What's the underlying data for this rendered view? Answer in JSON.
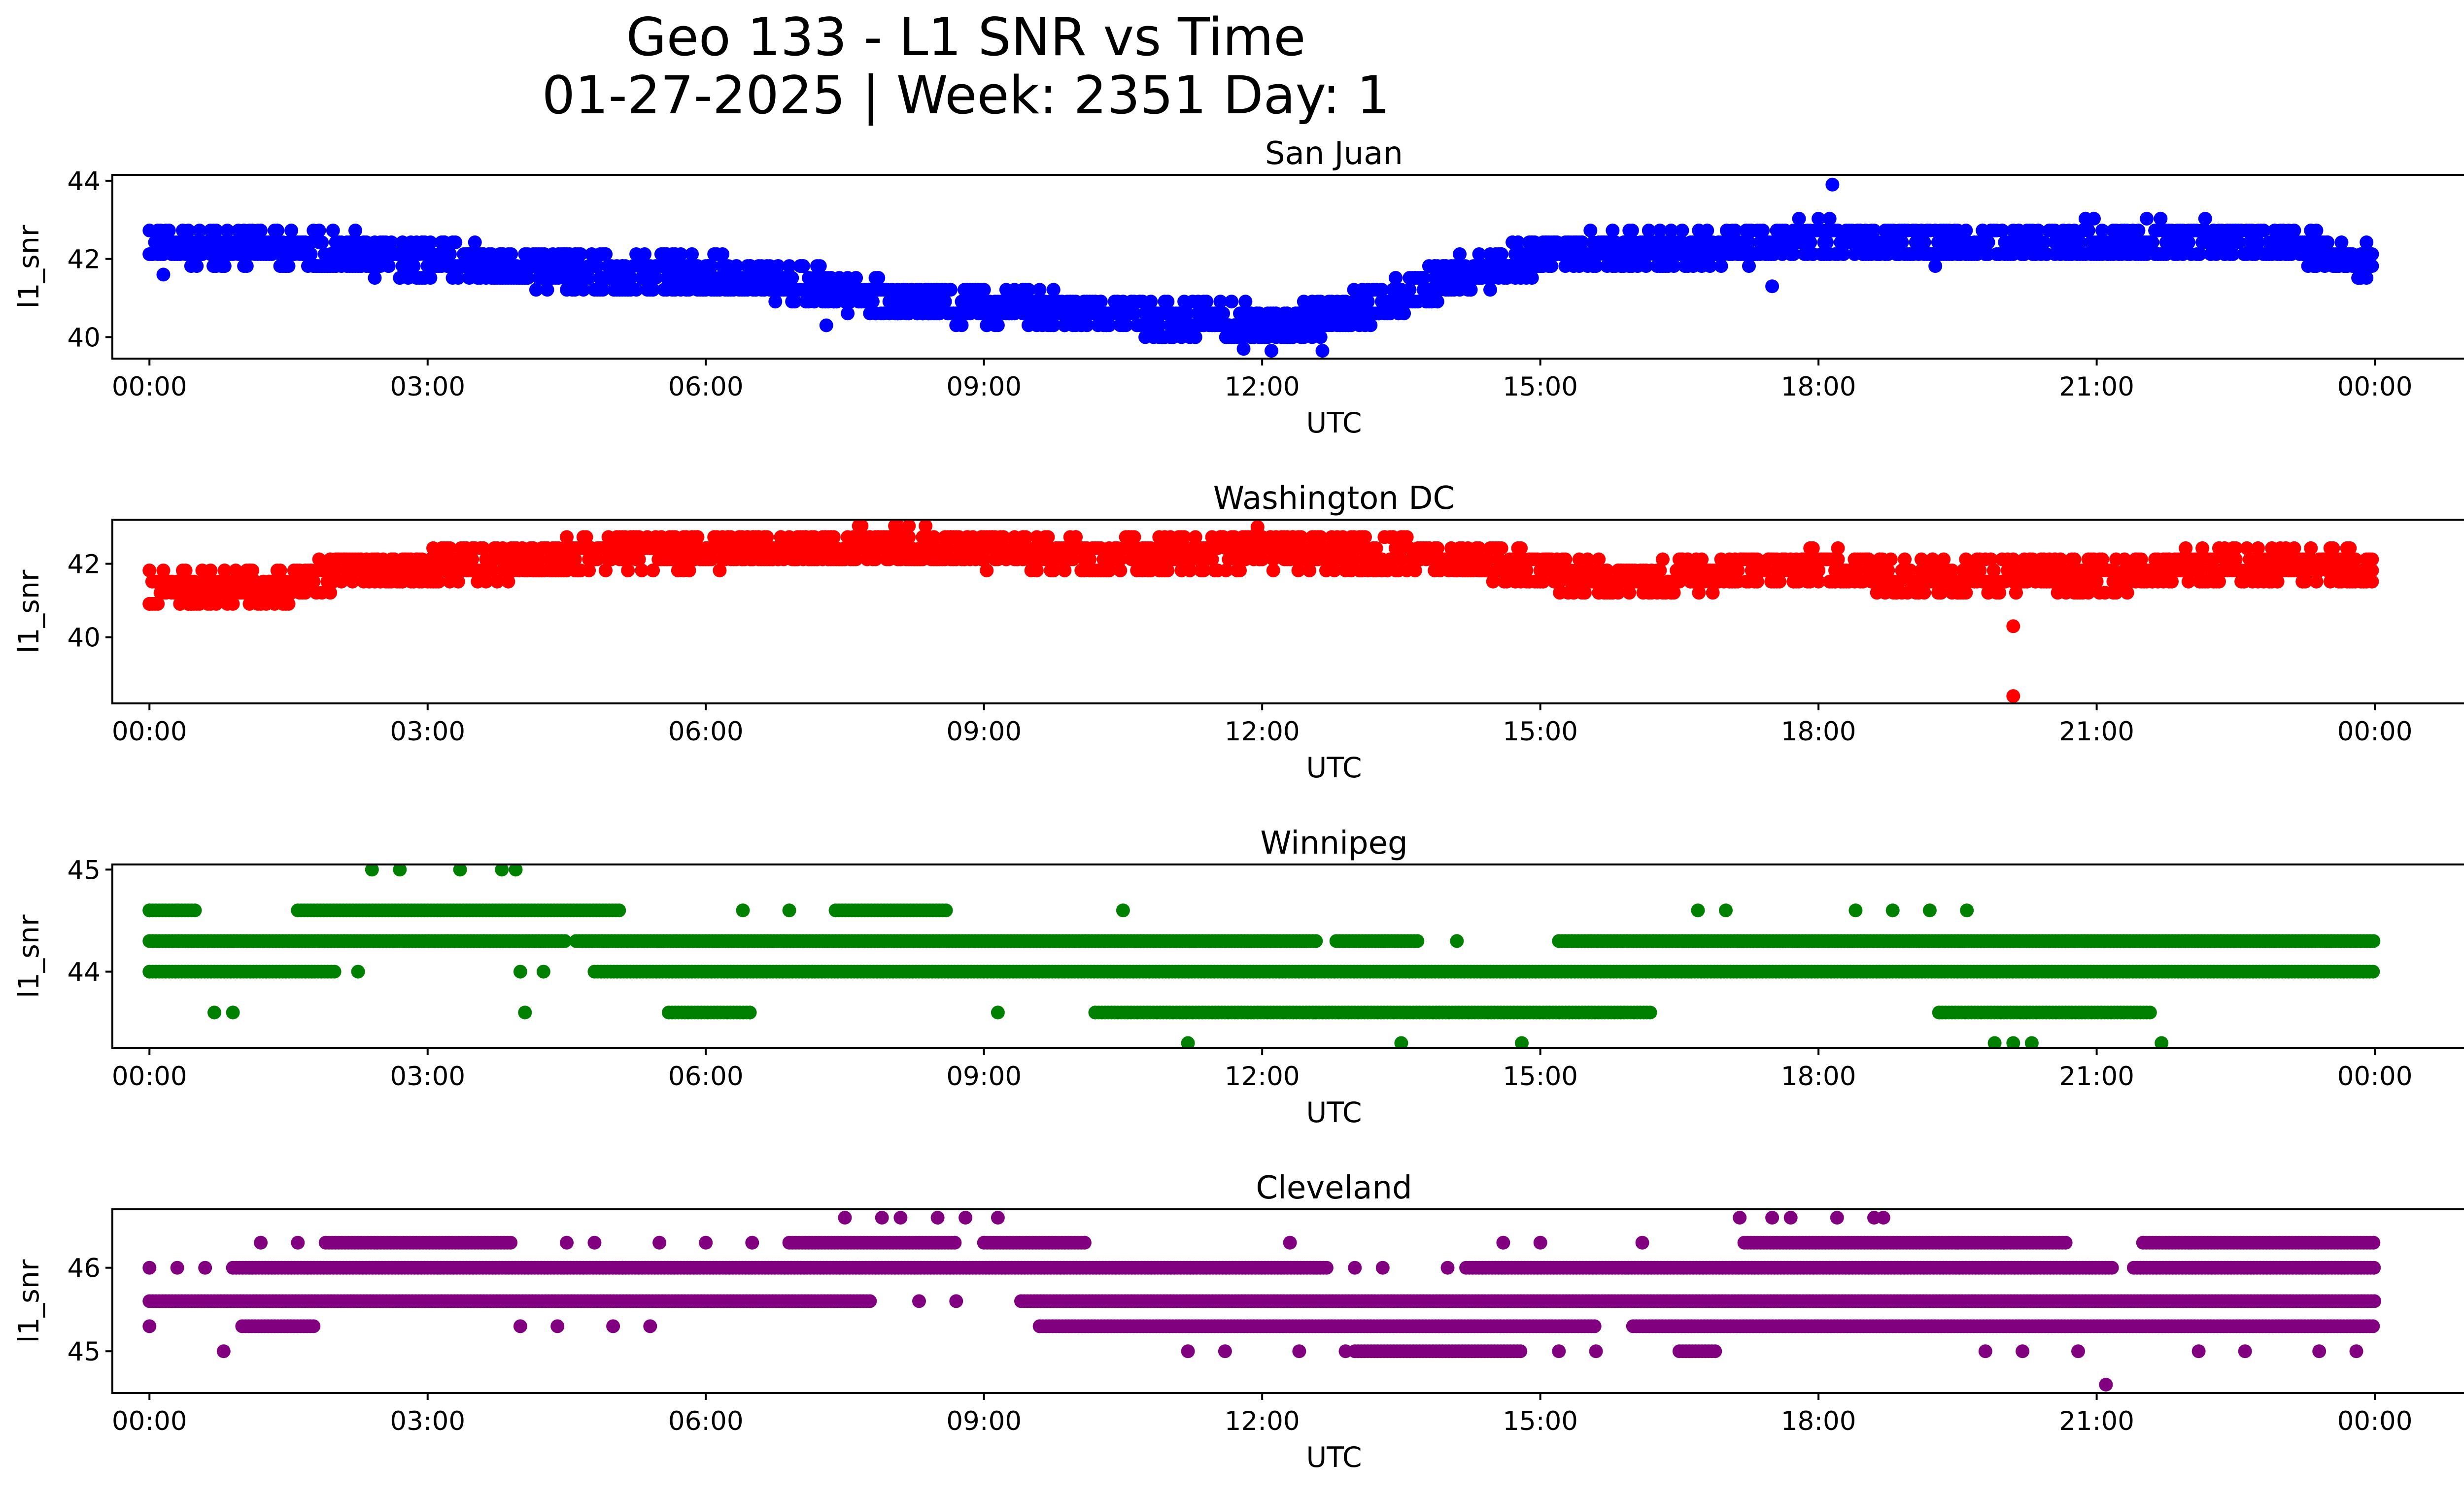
{
  "figure": {
    "title_line1": "Geo 133 - L1 SNR vs Time",
    "title_line2": "01-27-2025 | Week: 2351 Day: 1"
  },
  "chart_data": [
    {
      "type": "scatter",
      "title": "San Juan",
      "xlabel": "UTC",
      "ylabel": "l1_snr",
      "color": "#0000ff",
      "xlim": [
        -0.4,
        25.95
      ],
      "ylim": [
        39.45,
        44.15
      ],
      "yticks": [
        40,
        42,
        44
      ],
      "ytick_labels": [
        "40",
        "42",
        "44"
      ],
      "xticks": [
        0,
        3,
        6,
        9,
        12,
        15,
        18,
        21,
        24
      ],
      "xtick_labels": [
        "00:00",
        "03:00",
        "06:00",
        "09:00",
        "12:00",
        "15:00",
        "18:00",
        "21:00",
        "00:00"
      ],
      "trend": [
        [
          0,
          42.4
        ],
        [
          1,
          42.3
        ],
        [
          2,
          42.2
        ],
        [
          3,
          42.0
        ],
        [
          4,
          41.8
        ],
        [
          5,
          41.6
        ],
        [
          6,
          41.6
        ],
        [
          7,
          41.4
        ],
        [
          8,
          41.0
        ],
        [
          9,
          40.8
        ],
        [
          10,
          40.7
        ],
        [
          11,
          40.5
        ],
        [
          12,
          40.3
        ],
        [
          12.5,
          40.4
        ],
        [
          13,
          40.7
        ],
        [
          14,
          41.5
        ],
        [
          15,
          42.1
        ],
        [
          16,
          42.2
        ],
        [
          17,
          42.3
        ],
        [
          18,
          42.5
        ],
        [
          19,
          42.4
        ],
        [
          20,
          42.4
        ],
        [
          21,
          42.5
        ],
        [
          22,
          42.5
        ],
        [
          23,
          42.4
        ],
        [
          23.7,
          42.0
        ],
        [
          24,
          41.8
        ]
      ],
      "outliers": [
        [
          18.15,
          43.9
        ],
        [
          12.1,
          39.65
        ],
        [
          11.8,
          39.7
        ],
        [
          12.65,
          39.65
        ],
        [
          7.3,
          40.3
        ],
        [
          0.15,
          41.6
        ],
        [
          17.5,
          41.3
        ]
      ]
    },
    {
      "type": "scatter",
      "title": "Washington DC",
      "xlabel": "UTC",
      "ylabel": "l1_snr",
      "color": "#ff0000",
      "xlim": [
        -0.4,
        25.95
      ],
      "ylim": [
        38.2,
        43.2
      ],
      "yticks": [
        40,
        42
      ],
      "ytick_labels": [
        "40",
        "42"
      ],
      "xticks": [
        0,
        3,
        6,
        9,
        12,
        15,
        18,
        21,
        24
      ],
      "xtick_labels": [
        "00:00",
        "03:00",
        "06:00",
        "09:00",
        "12:00",
        "15:00",
        "18:00",
        "21:00",
        "00:00"
      ],
      "trend": [
        [
          0,
          41.3
        ],
        [
          1,
          41.3
        ],
        [
          1.5,
          41.3
        ],
        [
          2,
          41.8
        ],
        [
          3,
          41.9
        ],
        [
          4,
          42.1
        ],
        [
          5,
          42.3
        ],
        [
          6,
          42.4
        ],
        [
          7,
          42.4
        ],
        [
          8,
          42.5
        ],
        [
          9,
          42.4
        ],
        [
          10,
          42.2
        ],
        [
          11,
          42.2
        ],
        [
          12,
          42.4
        ],
        [
          13,
          42.3
        ],
        [
          14,
          42.2
        ],
        [
          15,
          41.8
        ],
        [
          15.5,
          41.6
        ],
        [
          16,
          41.5
        ],
        [
          17,
          41.8
        ],
        [
          18,
          41.9
        ],
        [
          19,
          41.6
        ],
        [
          20,
          41.7
        ],
        [
          21,
          41.7
        ],
        [
          22,
          41.9
        ],
        [
          23,
          42.0
        ],
        [
          24,
          41.9
        ]
      ],
      "outliers": [
        [
          20.1,
          40.3
        ],
        [
          20.1,
          38.4
        ],
        [
          11.95,
          43.0
        ]
      ]
    },
    {
      "type": "scatter",
      "title": "Winnipeg",
      "xlabel": "UTC",
      "ylabel": "l1_snr",
      "color": "#008000",
      "xlim": [
        -0.4,
        25.95
      ],
      "ylim": [
        43.25,
        45.05
      ],
      "yticks": [
        44,
        45
      ],
      "ytick_labels": [
        "44",
        "45"
      ],
      "xticks": [
        0,
        3,
        6,
        9,
        12,
        15,
        18,
        21,
        24
      ],
      "xtick_labels": [
        "00:00",
        "03:00",
        "06:00",
        "09:00",
        "12:00",
        "15:00",
        "18:00",
        "21:00",
        "00:00"
      ],
      "levels": [
        45.0,
        44.6,
        44.3,
        44.0,
        43.6,
        43.3
      ],
      "bands": [
        {
          "level": 44.3,
          "segments": [
            [
              0,
              4.5
            ],
            [
              4.6,
              12.6
            ],
            [
              12.8,
              13.7
            ],
            [
              15.2,
              24
            ]
          ]
        },
        {
          "level": 44.0,
          "segments": [
            [
              0,
              2.0
            ],
            [
              4.8,
              24
            ]
          ]
        },
        {
          "level": 44.6,
          "segments": [
            [
              1.6,
              5.1
            ],
            [
              7.4,
              8.6
            ],
            [
              0,
              0.5
            ]
          ]
        },
        {
          "level": 43.6,
          "segments": [
            [
              5.6,
              6.5
            ],
            [
              10.2,
              16.2
            ],
            [
              19.3,
              21.6
            ]
          ]
        }
      ],
      "outliers": [
        [
          2.4,
          45.0
        ],
        [
          2.7,
          45.0
        ],
        [
          3.35,
          45.0
        ],
        [
          3.8,
          45.0
        ],
        [
          3.95,
          45.0
        ],
        [
          11.2,
          43.3
        ],
        [
          13.5,
          43.3
        ],
        [
          14.8,
          43.3
        ],
        [
          19.9,
          43.3
        ],
        [
          20.1,
          43.3
        ],
        [
          20.3,
          43.3
        ],
        [
          21.7,
          43.3
        ],
        [
          6.4,
          44.6
        ],
        [
          6.9,
          44.6
        ],
        [
          10.5,
          44.6
        ],
        [
          16.7,
          44.6
        ],
        [
          17.0,
          44.6
        ],
        [
          18.4,
          44.6
        ],
        [
          18.8,
          44.6
        ],
        [
          19.2,
          44.6
        ],
        [
          19.6,
          44.6
        ],
        [
          0.9,
          43.6
        ],
        [
          0.7,
          43.6
        ],
        [
          4.05,
          43.6
        ],
        [
          9.15,
          43.6
        ],
        [
          14.1,
          44.3
        ],
        [
          2.25,
          44.0
        ],
        [
          4.0,
          44.0
        ],
        [
          4.25,
          44.0
        ],
        [
          0.0,
          44.6
        ],
        [
          0.3,
          44.6
        ]
      ]
    },
    {
      "type": "scatter",
      "title": "Cleveland",
      "xlabel": "UTC",
      "ylabel": "l1_snr",
      "color": "#800080",
      "xlim": [
        -0.4,
        25.95
      ],
      "ylim": [
        44.5,
        46.7
      ],
      "yticks": [
        45,
        46
      ],
      "ytick_labels": [
        "45",
        "46"
      ],
      "xticks": [
        0,
        3,
        6,
        9,
        12,
        15,
        18,
        21,
        24
      ],
      "xtick_labels": [
        "00:00",
        "03:00",
        "06:00",
        "09:00",
        "12:00",
        "15:00",
        "18:00",
        "21:00",
        "00:00"
      ],
      "levels": [
        46.6,
        46.3,
        46.0,
        45.6,
        45.3,
        45.0
      ],
      "bands": [
        {
          "level": 46.0,
          "segments": [
            [
              0.9,
              12.7
            ],
            [
              14.2,
              21.2
            ],
            [
              21.4,
              24
            ]
          ]
        },
        {
          "level": 45.6,
          "segments": [
            [
              0,
              7.8
            ],
            [
              9.4,
              24
            ]
          ]
        },
        {
          "level": 45.3,
          "segments": [
            [
              1.0,
              1.8
            ],
            [
              9.6,
              15.6
            ],
            [
              16.0,
              24
            ]
          ]
        },
        {
          "level": 46.3,
          "segments": [
            [
              1.9,
              3.9
            ],
            [
              6.9,
              8.7
            ],
            [
              9.0,
              10.1
            ],
            [
              17.2,
              20.7
            ],
            [
              21.5,
              24
            ]
          ]
        },
        {
          "level": 45.0,
          "segments": [
            [
              13.0,
              14.8
            ],
            [
              16.5,
              16.9
            ]
          ]
        }
      ],
      "outliers": [
        [
          7.5,
          46.6
        ],
        [
          7.9,
          46.6
        ],
        [
          8.1,
          46.6
        ],
        [
          8.5,
          46.6
        ],
        [
          8.8,
          46.6
        ],
        [
          9.15,
          46.6
        ],
        [
          17.15,
          46.6
        ],
        [
          17.5,
          46.6
        ],
        [
          17.7,
          46.6
        ],
        [
          18.2,
          46.6
        ],
        [
          18.6,
          46.6
        ],
        [
          18.7,
          46.6
        ],
        [
          0.8,
          45.0
        ],
        [
          21.1,
          44.6
        ],
        [
          11.2,
          45.0
        ],
        [
          11.6,
          45.0
        ],
        [
          12.4,
          45.0
        ],
        [
          12.9,
          45.0
        ],
        [
          15.2,
          45.0
        ],
        [
          15.6,
          45.0
        ],
        [
          19.8,
          45.0
        ],
        [
          20.2,
          45.0
        ],
        [
          20.8,
          45.0
        ],
        [
          22.1,
          45.0
        ],
        [
          22.6,
          45.0
        ],
        [
          23.4,
          45.0
        ],
        [
          23.8,
          45.0
        ],
        [
          0.0,
          46.0
        ],
        [
          0.3,
          46.0
        ],
        [
          0.6,
          46.0
        ],
        [
          1.2,
          46.3
        ],
        [
          1.6,
          46.3
        ],
        [
          0.0,
          45.3
        ],
        [
          4.0,
          45.3
        ],
        [
          4.4,
          45.3
        ],
        [
          5.0,
          45.3
        ],
        [
          5.4,
          45.3
        ],
        [
          8.3,
          45.6
        ],
        [
          8.7,
          45.6
        ],
        [
          12.3,
          46.3
        ],
        [
          13.0,
          46.0
        ],
        [
          13.3,
          46.0
        ],
        [
          14.0,
          46.0
        ],
        [
          14.6,
          46.3
        ],
        [
          15.0,
          46.3
        ],
        [
          16.1,
          46.3
        ],
        [
          19.5,
          46.3
        ],
        [
          20.0,
          46.3
        ],
        [
          4.5,
          46.3
        ],
        [
          4.8,
          46.3
        ],
        [
          5.1,
          46.0
        ],
        [
          5.5,
          46.3
        ],
        [
          6.0,
          46.3
        ],
        [
          6.5,
          46.3
        ]
      ]
    }
  ]
}
